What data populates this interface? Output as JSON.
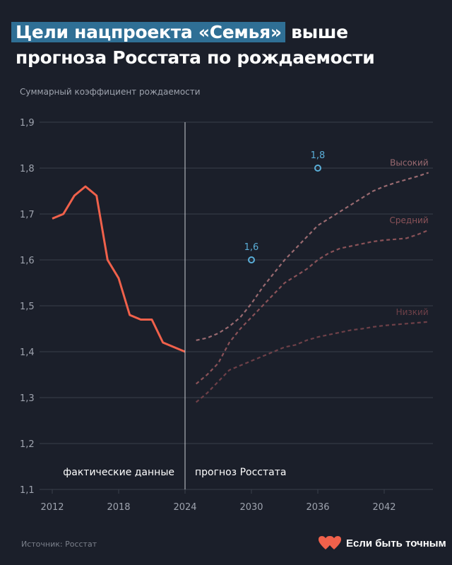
{
  "header": {
    "title_highlight": "Цели нацпроекта «Семья»",
    "title_rest": "выше",
    "title_line2": "прогноза Росстата по рождаемости"
  },
  "footer": {
    "source": "Источник: Росстат",
    "brand_name": "Если быть точным",
    "brand_icon": "hearts-logo-icon"
  },
  "colors": {
    "background": "#1b1f2a",
    "actual": "#f0614b",
    "forecast_high": "#9a6a70",
    "forecast_mid": "#8a5258",
    "forecast_low": "#6e4048",
    "target": "#5aaed8",
    "highlight": "#2f6f95"
  },
  "chart_data": {
    "type": "line",
    "title": "Цели нацпроекта «Семья» выше прогноза Росстата по рождаемости",
    "ylabel": "Суммарный коэффициент рождаемости",
    "xlabel": "",
    "xlim": [
      2011,
      2046
    ],
    "ylim": [
      1.1,
      1.9
    ],
    "x_ticks": [
      "2012",
      "2018",
      "2024",
      "2030",
      "2036",
      "2042"
    ],
    "y_ticks": [
      "1,1",
      "1,2",
      "1,3",
      "1,4",
      "1,5",
      "1,6",
      "1,7",
      "1,8",
      "1,9"
    ],
    "grid": true,
    "divider": {
      "x": 2024,
      "left_label": "фактические данные",
      "right_label": "прогноз Росстата"
    },
    "actual": {
      "x": [
        2012,
        2013,
        2014,
        2015,
        2016,
        2017,
        2018,
        2019,
        2020,
        2021,
        2022,
        2023,
        2024
      ],
      "values": [
        1.69,
        1.7,
        1.74,
        1.76,
        1.74,
        1.6,
        1.56,
        1.48,
        1.47,
        1.47,
        1.42,
        1.41,
        1.4
      ]
    },
    "series": [
      {
        "name": "Высокий",
        "x": [
          2025,
          2026,
          2027,
          2028,
          2029,
          2030,
          2031,
          2032,
          2033,
          2034,
          2035,
          2036,
          2037,
          2038,
          2039,
          2040,
          2041,
          2042,
          2043,
          2044,
          2045,
          2046
        ],
        "values": [
          1.425,
          1.43,
          1.44,
          1.455,
          1.475,
          1.505,
          1.54,
          1.57,
          1.6,
          1.625,
          1.65,
          1.675,
          1.69,
          1.705,
          1.72,
          1.735,
          1.75,
          1.76,
          1.768,
          1.775,
          1.782,
          1.79
        ]
      },
      {
        "name": "Средний",
        "x": [
          2025,
          2026,
          2027,
          2028,
          2029,
          2030,
          2031,
          2032,
          2033,
          2034,
          2035,
          2036,
          2037,
          2038,
          2039,
          2040,
          2041,
          2042,
          2043,
          2044,
          2045,
          2046
        ],
        "values": [
          1.33,
          1.35,
          1.375,
          1.42,
          1.45,
          1.475,
          1.5,
          1.525,
          1.55,
          1.565,
          1.58,
          1.6,
          1.615,
          1.625,
          1.63,
          1.635,
          1.64,
          1.643,
          1.645,
          1.647,
          1.655,
          1.665
        ]
      },
      {
        "name": "Низкий",
        "x": [
          2025,
          2026,
          2027,
          2028,
          2029,
          2030,
          2031,
          2032,
          2033,
          2034,
          2035,
          2036,
          2037,
          2038,
          2039,
          2040,
          2041,
          2042,
          2043,
          2044,
          2045,
          2046
        ],
        "values": [
          1.29,
          1.31,
          1.335,
          1.36,
          1.37,
          1.38,
          1.39,
          1.4,
          1.41,
          1.415,
          1.425,
          1.432,
          1.437,
          1.442,
          1.447,
          1.45,
          1.454,
          1.457,
          1.459,
          1.461,
          1.463,
          1.465
        ]
      }
    ],
    "targets": [
      {
        "x": 2030,
        "value": 1.6,
        "label": "1,6"
      },
      {
        "x": 2036,
        "value": 1.8,
        "label": "1,8"
      }
    ]
  }
}
